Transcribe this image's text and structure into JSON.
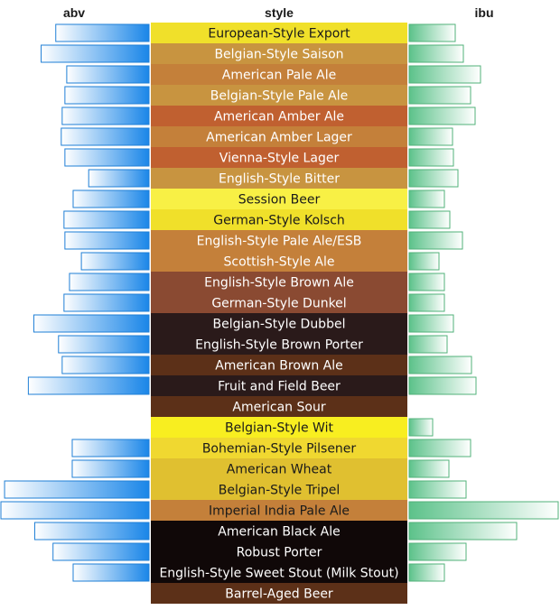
{
  "chart_data": {
    "type": "bar",
    "layout": "butterfly-table",
    "columns": {
      "left": "abv",
      "center": "style",
      "right": "ibu"
    },
    "left_max": 0.163,
    "right_max": 165,
    "colors": {
      "abv_bar": "#1a86e8",
      "abv_border": "#1f7fd6",
      "ibu_bar": "#6fcf97",
      "ibu_border": "#52b27a"
    },
    "rows": [
      {
        "style": "European-Style Export",
        "abv": 0.102,
        "ibu": 51,
        "color": "#f0e02a",
        "text": "#1a1a1a"
      },
      {
        "style": "Belgian-Style Saison",
        "abv": 0.118,
        "ibu": 60,
        "color": "#c89440",
        "text": "#ffffff"
      },
      {
        "style": "American Pale Ale",
        "abv": 0.09,
        "ibu": 79,
        "color": "#c4803a",
        "text": "#ffffff"
      },
      {
        "style": "Belgian-Style Pale Ale",
        "abv": 0.092,
        "ibu": 68,
        "color": "#c89440",
        "text": "#ffffff"
      },
      {
        "style": "American Amber Ale",
        "abv": 0.095,
        "ibu": 73,
        "color": "#c06030",
        "text": "#ffffff"
      },
      {
        "style": "American Amber Lager",
        "abv": 0.096,
        "ibu": 48,
        "color": "#c4803a",
        "text": "#ffffff"
      },
      {
        "style": "Vienna-Style Lager",
        "abv": 0.092,
        "ibu": 49,
        "color": "#c06030",
        "text": "#ffffff"
      },
      {
        "style": "English-Style Bitter",
        "abv": 0.066,
        "ibu": 54,
        "color": "#c89440",
        "text": "#ffffff"
      },
      {
        "style": "Session Beer",
        "abv": 0.083,
        "ibu": 39,
        "color": "#f8f045",
        "text": "#1a1a1a"
      },
      {
        "style": "German-Style Kolsch",
        "abv": 0.093,
        "ibu": 45,
        "color": "#f0e02a",
        "text": "#1a1a1a"
      },
      {
        "style": "English-Style Pale Ale/ESB",
        "abv": 0.092,
        "ibu": 59,
        "color": "#c4803a",
        "text": "#ffffff"
      },
      {
        "style": "Scottish-Style Ale",
        "abv": 0.074,
        "ibu": 33,
        "color": "#c4803a",
        "text": "#ffffff"
      },
      {
        "style": "English-Style Brown Ale",
        "abv": 0.087,
        "ibu": 39,
        "color": "#8a4a32",
        "text": "#ffffff"
      },
      {
        "style": "German-Style Dunkel",
        "abv": 0.093,
        "ibu": 39,
        "color": "#8a4a32",
        "text": "#ffffff"
      },
      {
        "style": "Belgian-Style Dubbel",
        "abv": 0.126,
        "ibu": 49,
        "color": "#2a1a1a",
        "text": "#ffffff"
      },
      {
        "style": "English-Style Brown Porter",
        "abv": 0.099,
        "ibu": 42,
        "color": "#2a1a1a",
        "text": "#ffffff"
      },
      {
        "style": "American Brown Ale",
        "abv": 0.095,
        "ibu": 69,
        "color": "#5c3018",
        "text": "#ffffff"
      },
      {
        "style": "Fruit and Field Beer",
        "abv": 0.132,
        "ibu": 74,
        "color": "#2a1a1a",
        "text": "#ffffff"
      },
      {
        "style": "American Sour",
        "abv": null,
        "ibu": null,
        "color": "#5c3018",
        "text": "#ffffff"
      },
      {
        "style": "Belgian-Style Wit",
        "abv": 0.0,
        "ibu": 26,
        "color": "#f8ee20",
        "text": "#1a1a1a"
      },
      {
        "style": "Bohemian-Style Pilsener",
        "abv": 0.084,
        "ibu": 68,
        "color": "#f0d830",
        "text": "#1a1a1a"
      },
      {
        "style": "American Wheat",
        "abv": 0.084,
        "ibu": 44,
        "color": "#e0c030",
        "text": "#1a1a1a"
      },
      {
        "style": "Belgian-Style Tripel",
        "abv": 0.158,
        "ibu": 63,
        "color": "#e0c030",
        "text": "#1a1a1a"
      },
      {
        "style": "Imperial India Pale Ale",
        "abv": 0.162,
        "ibu": 165,
        "color": "#c4803a",
        "text": "#1a1a1a"
      },
      {
        "style": "American Black Ale",
        "abv": 0.125,
        "ibu": 119,
        "color": "#100808",
        "text": "#ffffff"
      },
      {
        "style": "Robust Porter",
        "abv": 0.105,
        "ibu": 63,
        "color": "#100808",
        "text": "#ffffff"
      },
      {
        "style": "English-Style Sweet Stout (Milk Stout)",
        "abv": 0.083,
        "ibu": 39,
        "color": "#100808",
        "text": "#ffffff"
      },
      {
        "style": "Barrel-Aged Beer",
        "abv": null,
        "ibu": null,
        "color": "#5c3018",
        "text": "#ffffff"
      }
    ]
  }
}
